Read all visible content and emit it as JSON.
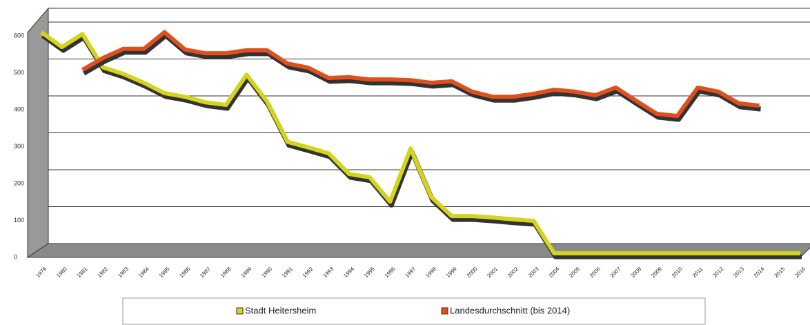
{
  "chart_data": {
    "type": "line",
    "categories": [
      "1979",
      "1980",
      "1981",
      "1982",
      "1983",
      "1984",
      "1985",
      "1986",
      "1987",
      "1988",
      "1989",
      "1990",
      "1991",
      "1992",
      "1993",
      "1994",
      "1995",
      "1996",
      "1997",
      "1998",
      "1999",
      "2000",
      "2001",
      "2002",
      "2003",
      "2004",
      "2005",
      "2006",
      "2007",
      "2008",
      "2009",
      "2010",
      "2011",
      "2012",
      "2013",
      "2014",
      "2015",
      "2016"
    ],
    "series": [
      {
        "name": "Stadt Heitersheim",
        "color": "#d4d41c",
        "values": [
          610,
          570,
          605,
          515,
          497,
          473,
          445,
          435,
          420,
          413,
          495,
          422,
          313,
          298,
          282,
          226,
          217,
          151,
          295,
          164,
          112,
          112,
          108,
          103,
          99,
          11,
          11,
          11,
          11,
          11,
          11,
          11,
          11,
          11,
          11,
          11,
          11,
          11
        ]
      },
      {
        "name": "Landesdurchschnitt (bis 2014)",
        "color": "#e0501c",
        "values": [
          null,
          null,
          508,
          540,
          565,
          565,
          610,
          563,
          553,
          553,
          561,
          561,
          525,
          514,
          486,
          488,
          482,
          482,
          480,
          473,
          477,
          449,
          435,
          435,
          443,
          454,
          449,
          439,
          460,
          424,
          389,
          383,
          460,
          449,
          417,
          411,
          null,
          null
        ]
      }
    ],
    "ylim": [
      0,
      600
    ],
    "yticks": [
      0,
      100,
      200,
      300,
      400,
      500,
      600
    ],
    "grid": true
  }
}
